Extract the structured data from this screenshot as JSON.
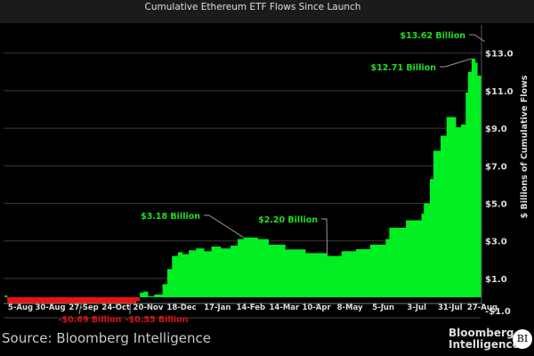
{
  "chart_data": {
    "type": "area",
    "title": "Cumulative Ethereum ETF Flows Since Launch",
    "ylabel": "$ Billions of Cumulative Flows",
    "xlabel": "",
    "ylim": [
      -1.0,
      14.0
    ],
    "y_ticks": [
      "$13.0",
      "$11.0",
      "$9.0",
      "$7.0",
      "$5.0",
      "$3.0",
      "$1.0",
      "-$1.0"
    ],
    "y_tick_values": [
      13,
      11,
      9,
      7,
      5,
      3,
      1,
      -1
    ],
    "x_ticks": [
      "5-Aug",
      "30-Aug",
      "27-Sep",
      "24-Oct",
      "20-Nov",
      "18-Dec",
      "17-Jan",
      "14-Feb",
      "14-Mar",
      "10-Apr",
      "8-May",
      "5-Jun",
      "3-Jul",
      "31-Jul",
      "27-Aug"
    ],
    "x_tick_dates": [
      "2024-08-05",
      "2024-08-30",
      "2024-09-27",
      "2024-10-24",
      "2024-11-20",
      "2024-12-18",
      "2025-01-17",
      "2025-02-14",
      "2025-03-14",
      "2025-04-10",
      "2025-05-08",
      "2025-06-05",
      "2025-07-03",
      "2025-07-31",
      "2025-08-27"
    ],
    "grid": true,
    "colors": {
      "positive": "#00ee22",
      "negative": "#ee1111",
      "annotation_pos": "#22dd22",
      "annotation_neg": "#dd1111",
      "grid": "#3a3a3a"
    },
    "series": [
      {
        "x": [
          "2024-07-23",
          "2024-07-25",
          "2024-08-01",
          "2024-08-15",
          "2024-09-01",
          "2024-09-25",
          "2024-10-10",
          "2024-11-05",
          "2024-11-10",
          "2024-11-13",
          "2024-11-16",
          "2024-11-20",
          "2024-11-25",
          "2024-12-02",
          "2024-12-06",
          "2024-12-10",
          "2024-12-15",
          "2024-12-19",
          "2024-12-24",
          "2024-12-30",
          "2025-01-06",
          "2025-01-12",
          "2025-01-20",
          "2025-01-28",
          "2025-02-03",
          "2025-02-08",
          "2025-02-20",
          "2025-03-01",
          "2025-03-15",
          "2025-04-01",
          "2025-04-19",
          "2025-05-01",
          "2025-05-13",
          "2025-05-25",
          "2025-06-07",
          "2025-06-10",
          "2025-06-24",
          "2025-07-07",
          "2025-07-09",
          "2025-07-14",
          "2025-07-17",
          "2025-07-23",
          "2025-07-28",
          "2025-08-03",
          "2025-08-05",
          "2025-08-09",
          "2025-08-13",
          "2025-08-15",
          "2025-08-18",
          "2025-08-21",
          "2025-08-23",
          "2025-08-27",
          "2025-08-29"
        ],
        "values": [
          0.1,
          -0.3,
          -0.45,
          -0.55,
          -0.6,
          -0.69,
          -0.62,
          -0.55,
          -0.2,
          0.25,
          0.3,
          0.05,
          0.15,
          0.7,
          1.5,
          2.2,
          2.4,
          2.3,
          2.5,
          2.6,
          2.45,
          2.7,
          2.6,
          2.75,
          3.1,
          3.18,
          3.1,
          2.8,
          2.55,
          2.35,
          2.2,
          2.45,
          2.56,
          2.8,
          3.1,
          3.7,
          4.1,
          4.45,
          5.0,
          6.3,
          7.8,
          8.6,
          9.6,
          9.6,
          9.05,
          9.2,
          10.9,
          12.0,
          12.71,
          12.5,
          11.8,
          12.7,
          13.62
        ]
      }
    ],
    "annotations": [
      {
        "text": "$13.62 Billion",
        "date": "2025-08-29",
        "value": 13.62
      },
      {
        "text": "$12.71 Billion",
        "date": "2025-08-18",
        "value": 12.71
      },
      {
        "text": "$3.18 Billion",
        "date": "2025-02-08",
        "value": 3.18
      },
      {
        "text": "$2.20 Billion",
        "date": "2025-04-19",
        "value": 2.2
      },
      {
        "text": "-$0.69 Billion",
        "date": "2024-09-25",
        "value": -0.69
      },
      {
        "text": "-$0.55 Billion",
        "date": "2024-11-05",
        "value": -0.55
      }
    ]
  },
  "footer": {
    "source": "Source: Bloomberg Intelligence",
    "logo_text": "Bloomberg Intelligence",
    "logo_mark": "BI"
  }
}
